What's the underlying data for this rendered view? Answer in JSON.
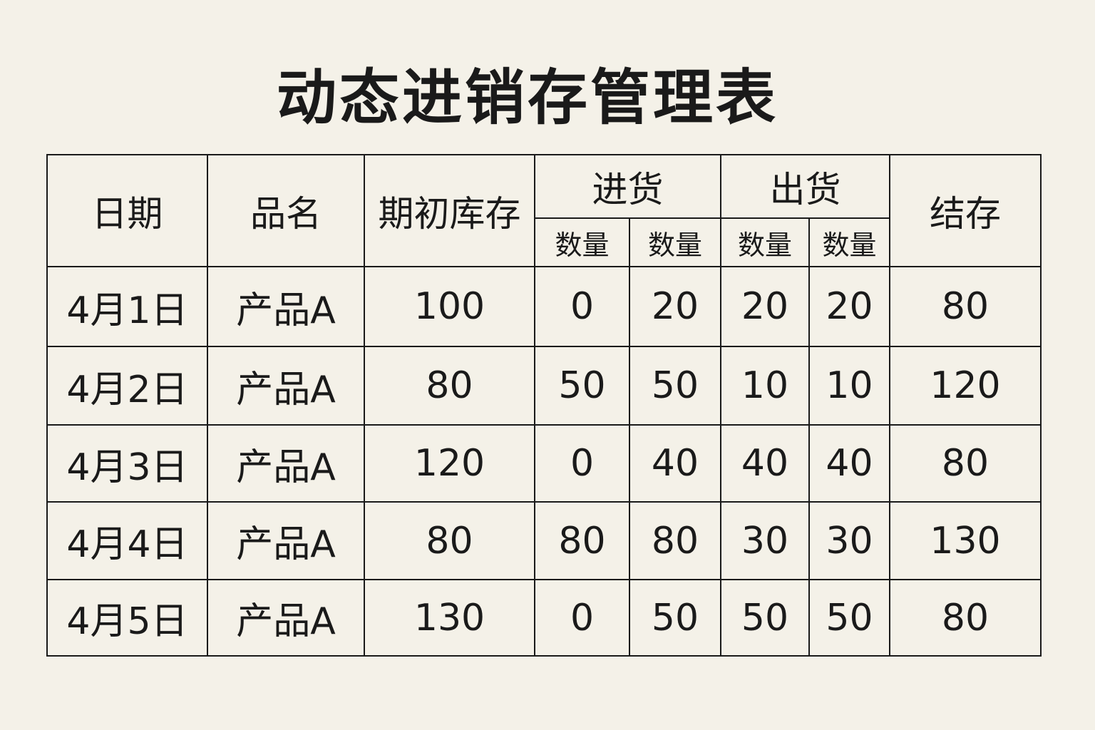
{
  "title": "动态进销存管理表",
  "headers": {
    "date": "日期",
    "product": "品名",
    "opening": "期初库存",
    "inbound": "进货",
    "outbound": "出货",
    "closing": "结存",
    "sub": [
      "数量",
      "数量",
      "数量",
      "数量"
    ]
  },
  "rows": [
    [
      "4月1日",
      "产品A",
      "100",
      "0",
      "20",
      "20",
      "20",
      "80"
    ],
    [
      "4月2日",
      "产品A",
      "80",
      "50",
      "50",
      "10",
      "10",
      "120"
    ],
    [
      "4月3日",
      "产品A",
      "120",
      "0",
      "40",
      "40",
      "40",
      "80"
    ],
    [
      "4月4日",
      "产品A",
      "80",
      "80",
      "80",
      "30",
      "30",
      "130"
    ],
    [
      "4月5日",
      "产品A",
      "130",
      "0",
      "50",
      "50",
      "50",
      "80"
    ]
  ]
}
